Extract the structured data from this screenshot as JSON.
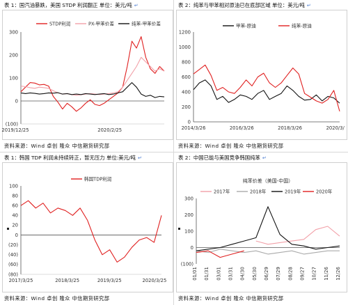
{
  "panels": [
    {
      "caption": "表 1：国汽油暴跌，美国 STDP 利润翻正   单位：美元/吨",
      "source": "资料来源：Wind  卓创  隆众  中信期货研究部"
    },
    {
      "caption": "表 2：纯苯与甲苯相对原油已在底部区域   单位：美元/吨",
      "source": "资料来源：Wind  卓创  隆众  中信期货研究部"
    },
    {
      "caption": "表 1：韩国 TDP 利润未持续转正，暂无压力 单位:美元/吨",
      "source": "资料来源：Wind  卓创  隆众  中信期货研究部"
    },
    {
      "caption": "表 2：中国已能与美国竞争韩国纯苯",
      "source": "资料来源：Wind  卓创  隆众  中信期货研究部"
    }
  ],
  "chart_data": [
    {
      "type": "line",
      "title": "",
      "xlabel": "",
      "ylabel": "",
      "ylim": [
        -100,
        300
      ],
      "yticks": [
        -100,
        0,
        100,
        200,
        300
      ],
      "ytick_labels": [
        "(100)",
        "0",
        "100",
        "200",
        "300"
      ],
      "xtick_labels": [
        "2019/12/25",
        "2020/2/25"
      ],
      "legend_position": "top",
      "colors": [
        "#e02020",
        "#f2a0a8",
        "#111111"
      ],
      "x": [
        "2019-12-25",
        "2019-12-29",
        "2020-01-02",
        "2020-01-06",
        "2020-01-10",
        "2020-01-14",
        "2020-01-18",
        "2020-01-22",
        "2020-01-26",
        "2020-01-30",
        "2020-02-03",
        "2020-02-07",
        "2020-02-11",
        "2020-02-15",
        "2020-02-19",
        "2020-02-23",
        "2020-02-27",
        "2020-03-02",
        "2020-03-06",
        "2020-03-10",
        "2020-03-14",
        "2020-03-18",
        "2020-03-22",
        "2020-03-26",
        "2020-03-30",
        "2020-04-03",
        "2020-04-07",
        "2020-04-11",
        "2020-04-15",
        "2020-04-19",
        "2020-04-23",
        "2020-04-27"
      ],
      "series": [
        {
          "name": "STDP利润",
          "values": [
            40,
            60,
            80,
            78,
            70,
            72,
            65,
            20,
            -5,
            -35,
            -10,
            -25,
            -45,
            -30,
            -10,
            5,
            -15,
            -20,
            -10,
            5,
            20,
            35,
            60,
            150,
            260,
            230,
            280,
            190,
            140,
            120,
            150,
            130
          ]
        },
        {
          "name": "PX-甲苯价差",
          "values": [
            65,
            62,
            58,
            55,
            60,
            58,
            55,
            45,
            35,
            30,
            32,
            28,
            25,
            27,
            30,
            32,
            30,
            28,
            30,
            32,
            35,
            40,
            60,
            90,
            120,
            150,
            190,
            170,
            150,
            130,
            140,
            130
          ]
        },
        {
          "name": "纯苯-甲苯价差",
          "values": [
            35,
            32,
            35,
            33,
            30,
            32,
            35,
            34,
            36,
            30,
            32,
            28,
            30,
            28,
            32,
            30,
            28,
            30,
            32,
            28,
            30,
            35,
            40,
            60,
            80,
            60,
            30,
            20,
            25,
            15,
            20,
            18
          ]
        }
      ]
    },
    {
      "type": "line",
      "title": "",
      "xlabel": "",
      "ylabel": "",
      "ylim": [
        0,
        1200
      ],
      "yticks": [
        0,
        200,
        400,
        600,
        800,
        1000,
        1200
      ],
      "ytick_labels": [
        "0",
        "200",
        "400",
        "600",
        "800",
        "1000",
        "1200"
      ],
      "xtick_labels": [
        "2014/3/26",
        "2016/3/26",
        "2018/3/26",
        "2020/3/"
      ],
      "legend_position": "top",
      "colors": [
        "#111111",
        "#e02020"
      ],
      "x": [
        "2014-03",
        "2014-06",
        "2014-09",
        "2014-12",
        "2015-03",
        "2015-06",
        "2015-09",
        "2015-12",
        "2016-03",
        "2016-06",
        "2016-09",
        "2016-12",
        "2017-03",
        "2017-06",
        "2017-09",
        "2017-12",
        "2018-03",
        "2018-06",
        "2018-09",
        "2018-12",
        "2019-03",
        "2019-06",
        "2019-09",
        "2019-12",
        "2020-03",
        "2020-05"
      ],
      "series": [
        {
          "name": "甲苯-原油",
          "values": [
            430,
            520,
            560,
            480,
            300,
            340,
            260,
            300,
            360,
            340,
            300,
            380,
            420,
            300,
            340,
            380,
            480,
            420,
            340,
            290,
            300,
            360,
            280,
            340,
            320,
            250
          ]
        },
        {
          "name": "纯苯-原油",
          "values": [
            640,
            700,
            760,
            620,
            420,
            460,
            400,
            380,
            460,
            560,
            480,
            600,
            650,
            520,
            460,
            520,
            620,
            720,
            640,
            380,
            330,
            280,
            250,
            300,
            420,
            140
          ]
        }
      ]
    },
    {
      "type": "line",
      "title": "",
      "xlabel": "",
      "ylabel": "",
      "ylim": [
        -80,
        100
      ],
      "yticks": [
        -80,
        -60,
        -40,
        -20,
        0,
        20,
        40,
        60,
        80,
        100
      ],
      "ytick_labels": [
        "(80)",
        "(60)",
        "(40)",
        "(20)",
        "0",
        "20",
        "40",
        "60",
        "80",
        "100"
      ],
      "xtick_labels": [
        "2017/3/25",
        "2018/3/25",
        "2019/3/25",
        "2020/3/25"
      ],
      "legend_position": "top",
      "colors": [
        "#e02020"
      ],
      "x": [
        "2017-03",
        "2017-05",
        "2017-07",
        "2017-09",
        "2017-11",
        "2018-01",
        "2018-03",
        "2018-05",
        "2018-07",
        "2018-09",
        "2018-11",
        "2019-01",
        "2019-03",
        "2019-05",
        "2019-07",
        "2019-09",
        "2019-11",
        "2020-01",
        "2020-03",
        "2020-04"
      ],
      "series": [
        {
          "name": "韩国TDP利润",
          "values": [
            60,
            70,
            55,
            65,
            45,
            55,
            50,
            40,
            55,
            30,
            -10,
            -40,
            -30,
            -55,
            -45,
            -25,
            -10,
            -5,
            -15,
            40
          ]
        }
      ]
    },
    {
      "type": "line",
      "title": "纯苯价差（美国-中国）",
      "xlabel": "",
      "ylabel": "",
      "ylim": [
        -100,
        300
      ],
      "yticks": [
        -100,
        0,
        100,
        200,
        300
      ],
      "ytick_labels": [
        "(100)",
        "0",
        "100",
        "200",
        "300"
      ],
      "xtick_labels": [
        "01/01",
        "01/31",
        "03/01",
        "03/31",
        "04/30",
        "05/30",
        "06/29",
        "07/29",
        "08/28",
        "09/27",
        "10/27",
        "11/26",
        "12/26"
      ],
      "legend_position": "top",
      "colors": [
        "#f2a0a8",
        "#aaaaaa",
        "#111111",
        "#e02020"
      ],
      "x": [
        "01/01",
        "01/31",
        "03/01",
        "03/31",
        "04/30",
        "05/30",
        "06/29",
        "07/29",
        "08/28",
        "09/27",
        "10/27",
        "11/26",
        "12/26"
      ],
      "series": [
        {
          "name": "2017年",
          "values": [
            null,
            null,
            null,
            null,
            null,
            40,
            20,
            30,
            40,
            50,
            110,
            130,
            70
          ]
        },
        {
          "name": "2018年",
          "values": [
            -20,
            -30,
            -10,
            -20,
            -30,
            -20,
            -40,
            -30,
            -20,
            -40,
            -30,
            -20,
            -20
          ]
        },
        {
          "name": "2019年",
          "values": [
            -20,
            -10,
            0,
            20,
            40,
            60,
            250,
            80,
            20,
            10,
            -10,
            0,
            10
          ]
        },
        {
          "name": "2020年",
          "values": [
            -30,
            -20,
            -60,
            -40,
            -20,
            null,
            null,
            null,
            null,
            null,
            null,
            null,
            null
          ]
        }
      ]
    }
  ]
}
